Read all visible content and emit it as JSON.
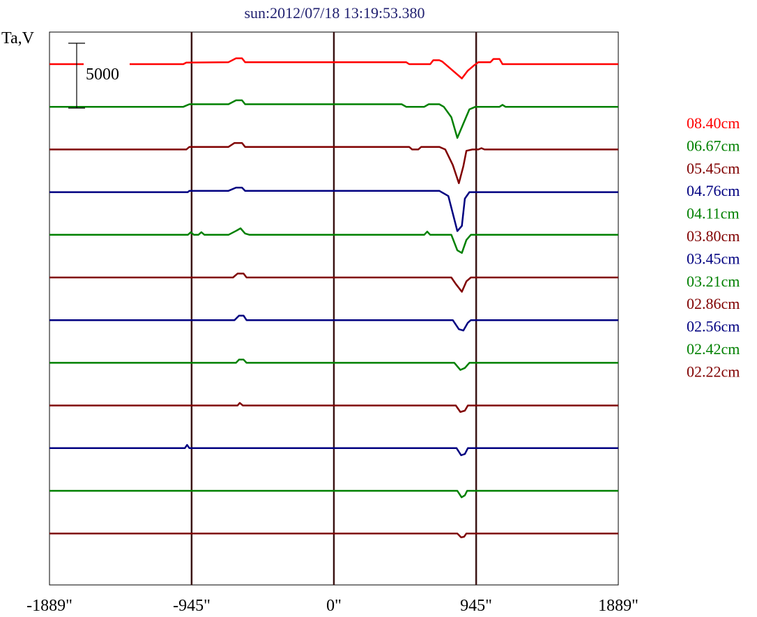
{
  "chart_data": {
    "type": "line",
    "title": "sun:2012/07/18 13:19:53.380",
    "ylabel": "Ta,V",
    "scale_bar_label": "5000",
    "x_ticks": [
      "-1889\"",
      "-945\"",
      "0\"",
      "945\"",
      "1889\""
    ],
    "xlim": [
      -1889,
      1889
    ],
    "vertical_lines_x": [
      -945,
      0,
      945
    ],
    "series": [
      {
        "name": "08.40cm",
        "color": "#ff0000",
        "baseline": 0,
        "points": [
          [
            -1889,
            0
          ],
          [
            -1400,
            0
          ],
          [
            -1000,
            0
          ],
          [
            -980,
            120
          ],
          [
            -700,
            150
          ],
          [
            -650,
            450
          ],
          [
            -610,
            450
          ],
          [
            -590,
            150
          ],
          [
            -300,
            150
          ],
          [
            480,
            150
          ],
          [
            500,
            0
          ],
          [
            640,
            0
          ],
          [
            660,
            300
          ],
          [
            700,
            300
          ],
          [
            720,
            200
          ],
          [
            800,
            -600
          ],
          [
            850,
            -1100
          ],
          [
            890,
            -500
          ],
          [
            930,
            -100
          ],
          [
            960,
            150
          ],
          [
            1040,
            150
          ],
          [
            1060,
            400
          ],
          [
            1100,
            400
          ],
          [
            1120,
            0
          ],
          [
            1889,
            0
          ]
        ]
      },
      {
        "name": "06.67cm",
        "color": "#008000",
        "baseline": 0,
        "points": [
          [
            -1889,
            0
          ],
          [
            -1000,
            0
          ],
          [
            -960,
            200
          ],
          [
            -700,
            200
          ],
          [
            -650,
            500
          ],
          [
            -610,
            500
          ],
          [
            -590,
            200
          ],
          [
            450,
            200
          ],
          [
            480,
            0
          ],
          [
            600,
            0
          ],
          [
            630,
            200
          ],
          [
            700,
            200
          ],
          [
            730,
            0
          ],
          [
            780,
            -800
          ],
          [
            820,
            -2400
          ],
          [
            860,
            -1300
          ],
          [
            900,
            -200
          ],
          [
            940,
            0
          ],
          [
            1100,
            0
          ],
          [
            1120,
            150
          ],
          [
            1140,
            0
          ],
          [
            1889,
            0
          ]
        ]
      },
      {
        "name": "05.45cm",
        "color": "#800000",
        "baseline": 0,
        "points": [
          [
            -1889,
            0
          ],
          [
            -980,
            0
          ],
          [
            -960,
            200
          ],
          [
            -700,
            200
          ],
          [
            -660,
            500
          ],
          [
            -610,
            500
          ],
          [
            -590,
            200
          ],
          [
            500,
            200
          ],
          [
            520,
            0
          ],
          [
            560,
            0
          ],
          [
            580,
            200
          ],
          [
            700,
            200
          ],
          [
            740,
            0
          ],
          [
            790,
            -1200
          ],
          [
            830,
            -2600
          ],
          [
            860,
            -1300
          ],
          [
            880,
            -100
          ],
          [
            920,
            0
          ],
          [
            960,
            0
          ],
          [
            980,
            100
          ],
          [
            1000,
            0
          ],
          [
            1889,
            0
          ]
        ]
      },
      {
        "name": "04.76cm",
        "color": "#000080",
        "baseline": 0,
        "points": [
          [
            -1889,
            0
          ],
          [
            -970,
            0
          ],
          [
            -960,
            100
          ],
          [
            -700,
            100
          ],
          [
            -650,
            350
          ],
          [
            -610,
            350
          ],
          [
            -590,
            100
          ],
          [
            700,
            100
          ],
          [
            760,
            -300
          ],
          [
            820,
            -3000
          ],
          [
            850,
            -2600
          ],
          [
            870,
            -500
          ],
          [
            900,
            0
          ],
          [
            1889,
            0
          ]
        ]
      },
      {
        "name": "04.11cm",
        "color": "#008000",
        "baseline": 0,
        "points": [
          [
            -1889,
            0
          ],
          [
            -970,
            0
          ],
          [
            -950,
            200
          ],
          [
            -930,
            0
          ],
          [
            -900,
            0
          ],
          [
            -880,
            200
          ],
          [
            -860,
            0
          ],
          [
            -700,
            0
          ],
          [
            -650,
            300
          ],
          [
            -620,
            500
          ],
          [
            -590,
            100
          ],
          [
            -560,
            0
          ],
          [
            600,
            0
          ],
          [
            620,
            250
          ],
          [
            640,
            0
          ],
          [
            780,
            0
          ],
          [
            820,
            -1200
          ],
          [
            850,
            -1400
          ],
          [
            880,
            -400
          ],
          [
            910,
            0
          ],
          [
            1889,
            0
          ]
        ]
      },
      {
        "name": "03.80cm",
        "color": "#800000",
        "baseline": 0,
        "points": [
          [
            -1889,
            0
          ],
          [
            -670,
            0
          ],
          [
            -640,
            300
          ],
          [
            -600,
            300
          ],
          [
            -580,
            0
          ],
          [
            780,
            0
          ],
          [
            810,
            -500
          ],
          [
            850,
            -1100
          ],
          [
            880,
            -300
          ],
          [
            910,
            0
          ],
          [
            1889,
            0
          ]
        ]
      },
      {
        "name": "03.45cm",
        "color": "#000080",
        "baseline": 0,
        "points": [
          [
            -1889,
            0
          ],
          [
            -660,
            0
          ],
          [
            -630,
            350
          ],
          [
            -600,
            350
          ],
          [
            -580,
            0
          ],
          [
            790,
            0
          ],
          [
            830,
            -700
          ],
          [
            860,
            -800
          ],
          [
            890,
            -200
          ],
          [
            910,
            0
          ],
          [
            1889,
            0
          ]
        ]
      },
      {
        "name": "03.21cm",
        "color": "#008000",
        "baseline": 0,
        "points": [
          [
            -1889,
            0
          ],
          [
            -650,
            0
          ],
          [
            -630,
            250
          ],
          [
            -600,
            250
          ],
          [
            -580,
            0
          ],
          [
            800,
            0
          ],
          [
            840,
            -550
          ],
          [
            870,
            -400
          ],
          [
            900,
            0
          ],
          [
            1889,
            0
          ]
        ]
      },
      {
        "name": "02.86cm",
        "color": "#800000",
        "baseline": 0,
        "points": [
          [
            -1889,
            0
          ],
          [
            -640,
            0
          ],
          [
            -625,
            200
          ],
          [
            -605,
            0
          ],
          [
            810,
            0
          ],
          [
            840,
            -500
          ],
          [
            870,
            -400
          ],
          [
            890,
            0
          ],
          [
            1889,
            0
          ]
        ]
      },
      {
        "name": "02.56cm",
        "color": "#000080",
        "baseline": 0,
        "points": [
          [
            -1889,
            0
          ],
          [
            -990,
            0
          ],
          [
            -975,
            250
          ],
          [
            -960,
            0
          ],
          [
            815,
            0
          ],
          [
            845,
            -550
          ],
          [
            870,
            -450
          ],
          [
            890,
            0
          ],
          [
            1889,
            0
          ]
        ]
      },
      {
        "name": "02.42cm",
        "color": "#008000",
        "baseline": 0,
        "points": [
          [
            -1889,
            0
          ],
          [
            820,
            0
          ],
          [
            848,
            -500
          ],
          [
            870,
            -350
          ],
          [
            885,
            0
          ],
          [
            1889,
            0
          ]
        ]
      },
      {
        "name": "02.22cm",
        "color": "#800000",
        "baseline": 0,
        "points": [
          [
            -1889,
            0
          ],
          [
            820,
            0
          ],
          [
            845,
            -300
          ],
          [
            865,
            -250
          ],
          [
            880,
            0
          ],
          [
            1889,
            0
          ]
        ]
      }
    ]
  }
}
